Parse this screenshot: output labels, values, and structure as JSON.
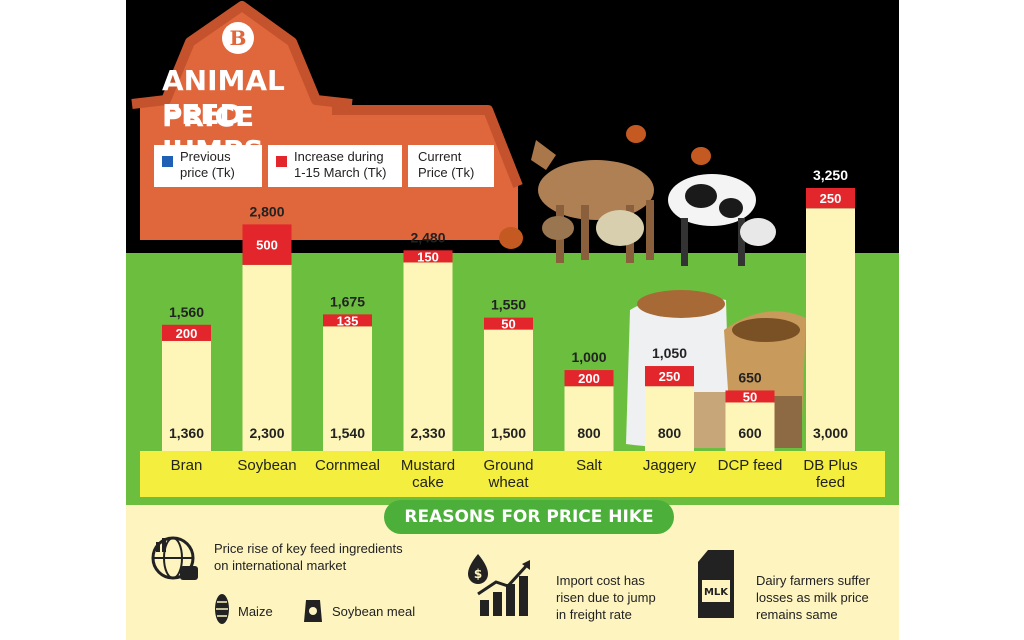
{
  "header": {
    "title_line1": "ANIMAL FEED",
    "title_line2": "PRICE JUMPS",
    "logo_text": "B"
  },
  "legend": {
    "previous_line1": "Previous",
    "previous_line2": "price (Tk)",
    "increase_line1": "Increase during",
    "increase_line2": "1-15 March (Tk)",
    "current_line1": "Current",
    "current_line2": "Price (Tk)"
  },
  "colors": {
    "barn": "#e0663b",
    "field": "#6cbf3e",
    "bar_previous": "#fdf6b8",
    "bar_increase": "#e3262b",
    "previous_swatch": "#1f5fb5",
    "increase_swatch": "#e3262b",
    "category_strip": "#f4ee3e",
    "pill": "#4caf3a"
  },
  "chart_data": {
    "type": "bar",
    "stacked": true,
    "categories": [
      [
        "Bran"
      ],
      [
        "Soybean"
      ],
      [
        "Cornmeal"
      ],
      [
        "Mustard",
        "cake"
      ],
      [
        "Ground",
        "wheat"
      ],
      [
        "Salt"
      ],
      [
        "Jaggery"
      ],
      [
        "DCP feed"
      ],
      [
        "DB Plus",
        "feed"
      ]
    ],
    "series": [
      {
        "name": "Previous price (Tk)",
        "values": [
          1360,
          2300,
          1540,
          2330,
          1500,
          800,
          800,
          600,
          3000
        ]
      },
      {
        "name": "Increase during 1-15 March (Tk)",
        "values": [
          200,
          500,
          135,
          150,
          50,
          200,
          250,
          50,
          250
        ]
      }
    ],
    "totals": [
      1560,
      2800,
      1675,
      2480,
      1550,
      1000,
      1050,
      650,
      3250
    ],
    "previous_labels": [
      "1,360",
      "2,300",
      "1,540",
      "2,330",
      "1,500",
      "800",
      "800",
      "600",
      "3,000"
    ],
    "increase_labels": [
      "200",
      "500",
      "135",
      "150",
      "50",
      "200",
      "250",
      "50",
      "250"
    ],
    "total_labels": [
      "1,560",
      "2,800",
      "1,675",
      "2,480",
      "1,550",
      "1,000",
      "1,050",
      "650",
      "3,250"
    ]
  },
  "reasons": {
    "heading": "REASONS FOR PRICE HIKE",
    "item1_line1": "Price rise of key feed ingredients",
    "item1_line2": "on international market",
    "maize": "Maize",
    "soybean_meal": "Soybean meal",
    "item2_line1": "Import cost has",
    "item2_line2": "risen due to jump",
    "item2_line3": "in freight rate",
    "item3_line1": "Dairy farmers suffer",
    "item3_line2": "losses as milk price",
    "item3_line3": "remains same",
    "milk_label": "MLK"
  }
}
